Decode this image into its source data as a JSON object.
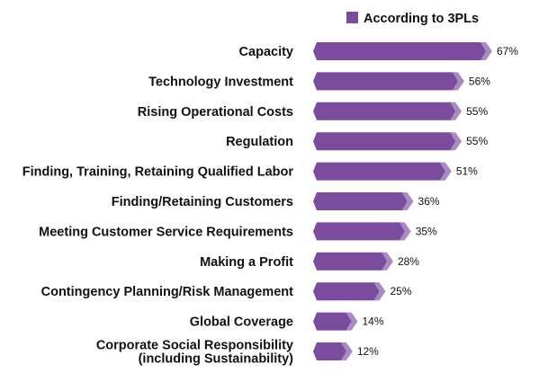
{
  "chart_data": {
    "type": "bar",
    "orientation": "horizontal",
    "categories": [
      [
        "Capacity"
      ],
      [
        "Technology Investment"
      ],
      [
        "Rising Operational Costs"
      ],
      [
        "Regulation"
      ],
      [
        "Finding, Training, Retaining Qualified Labor"
      ],
      [
        "Finding/Retaining Customers"
      ],
      [
        "Meeting Customer Service Requirements"
      ],
      [
        "Making a Profit"
      ],
      [
        "Contingency Planning/Risk Management"
      ],
      [
        "Global Coverage"
      ],
      [
        "Corporate Social Responsibility",
        "(including Sustainability)"
      ]
    ],
    "series": [
      {
        "name": "According to 3PLs",
        "values": [
          67,
          56,
          55,
          55,
          51,
          36,
          35,
          28,
          25,
          14,
          12
        ],
        "value_labels": [
          "67%",
          "56%",
          "55%",
          "55%",
          "51%",
          "36%",
          "35%",
          "28%",
          "25%",
          "14%",
          "12%"
        ]
      }
    ],
    "xlim": [
      0,
      100
    ],
    "grid": false,
    "legend_position": "top-right"
  },
  "colors": {
    "bar": "#7B4C9E",
    "bar_tip": "#A98BC4",
    "legend_swatch": "#7B4C9E",
    "text": "#111111"
  }
}
